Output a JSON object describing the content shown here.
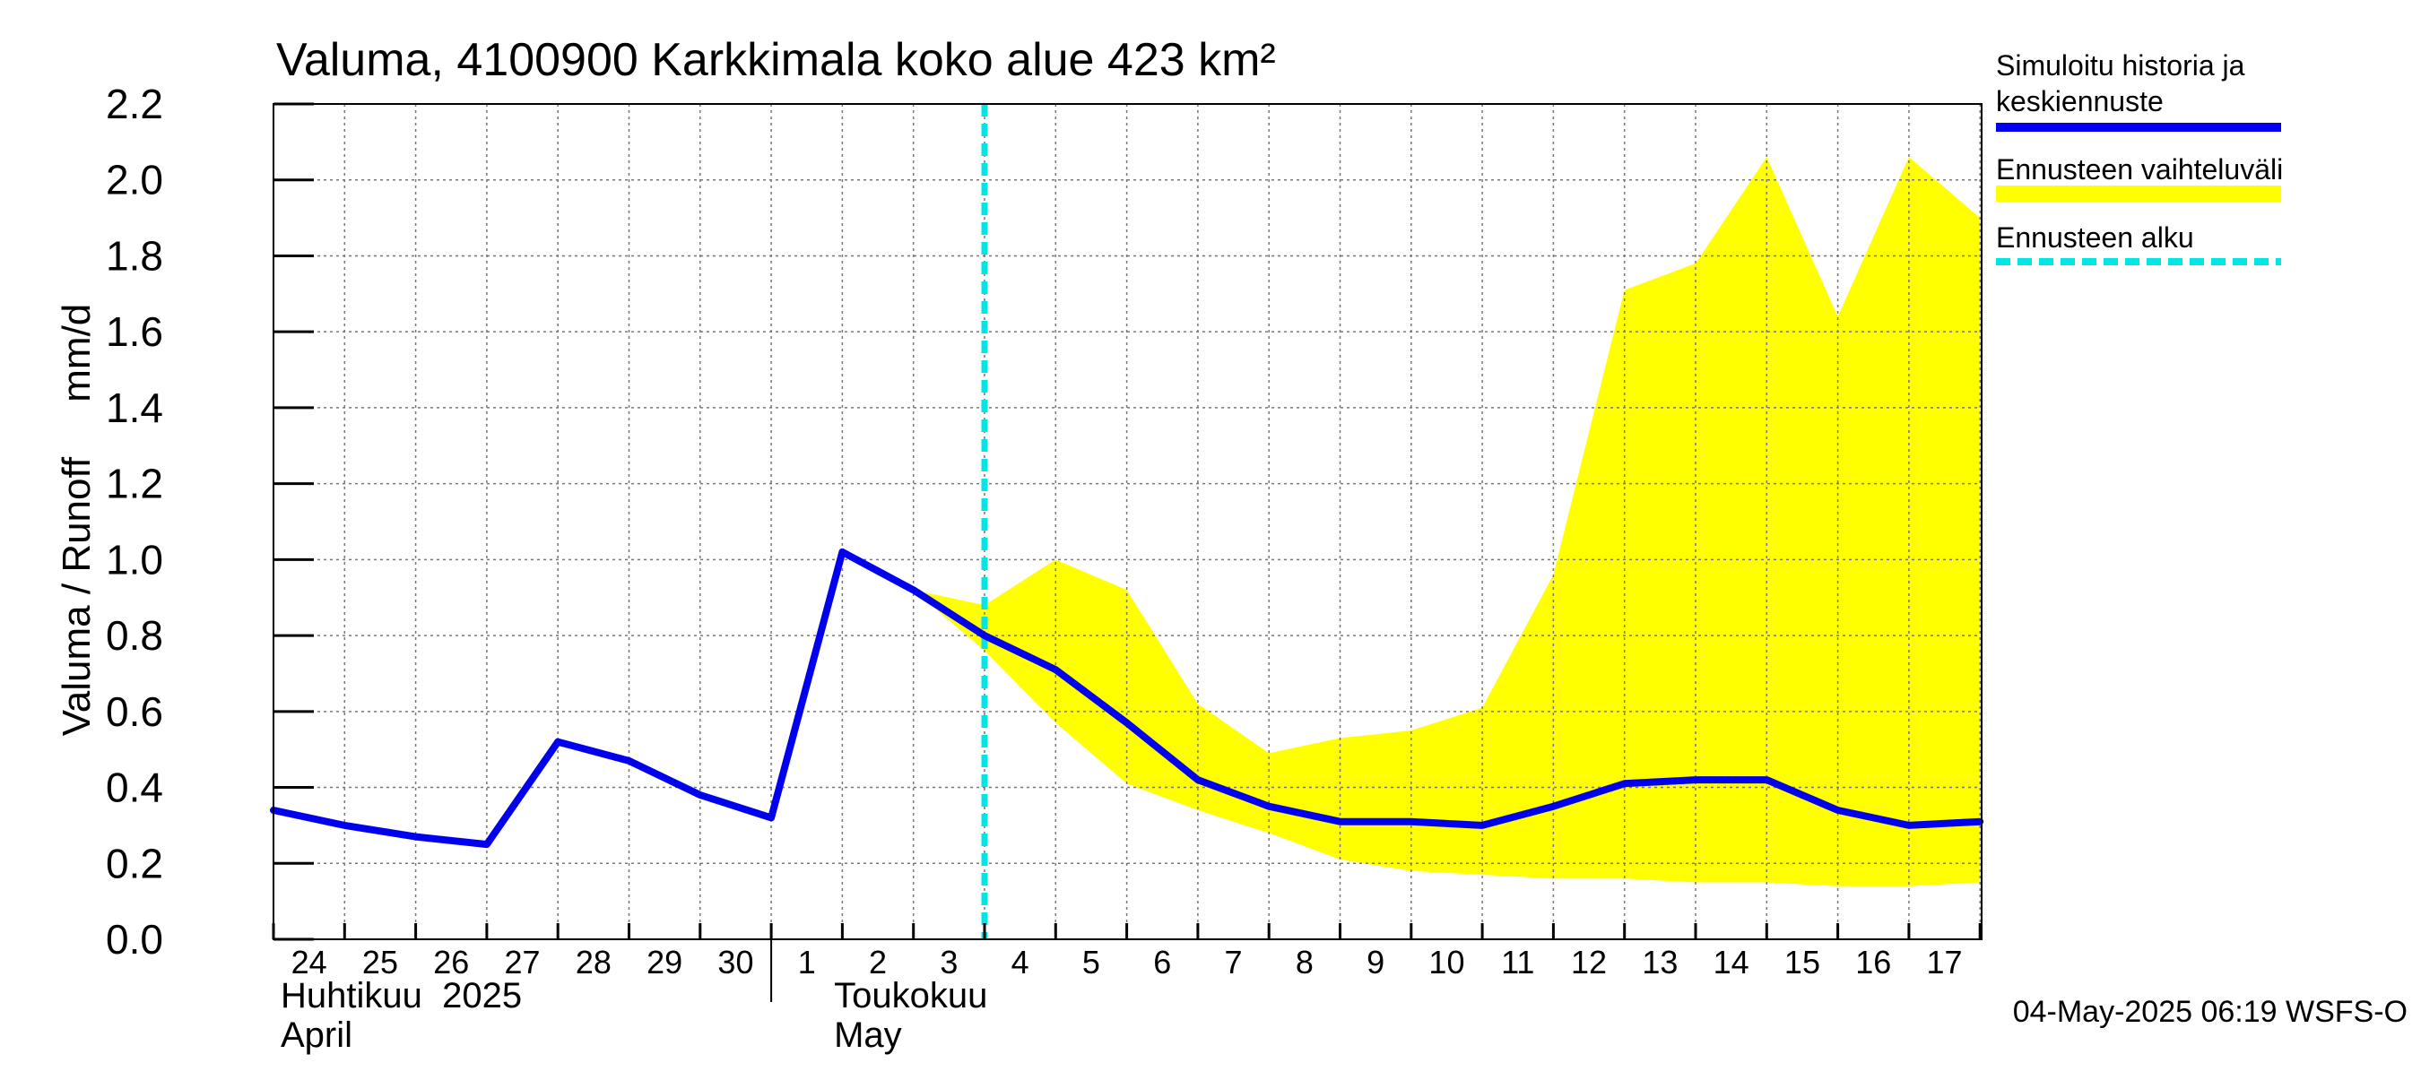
{
  "chart_data": {
    "type": "line",
    "title": "Valuma, 4100900 Karkkimala koko alue 423 km²",
    "ylabel": "Valuma / Runoff     mm/d",
    "ylim": [
      0,
      2.2
    ],
    "yticks": [
      "0.0",
      "0.2",
      "0.4",
      "0.6",
      "0.8",
      "1.0",
      "1.2",
      "1.4",
      "1.6",
      "1.8",
      "2.0",
      "2.2"
    ],
    "x_tick_labels": [
      "24",
      "25",
      "26",
      "27",
      "28",
      "29",
      "30",
      "1",
      "2",
      "3",
      "4",
      "5",
      "6",
      "7",
      "8",
      "9",
      "10",
      "11",
      "12",
      "13",
      "14",
      "15",
      "16",
      "17"
    ],
    "month_labels": [
      {
        "fi": "Huhtikuu  2025",
        "en": "April"
      },
      {
        "fi": "Toukokuu",
        "en": "May"
      }
    ],
    "grid": true,
    "legend_position": "right",
    "series": [
      {
        "name": "Simuloitu historia ja keskiennuste",
        "color": "#0000ee",
        "x": [
          "2025-04-24",
          "2025-04-25",
          "2025-04-26",
          "2025-04-27",
          "2025-04-28",
          "2025-04-29",
          "2025-04-30",
          "2025-05-01",
          "2025-05-02",
          "2025-05-03",
          "2025-05-04",
          "2025-05-05",
          "2025-05-06",
          "2025-05-07",
          "2025-05-08",
          "2025-05-09",
          "2025-05-10",
          "2025-05-11",
          "2025-05-12",
          "2025-05-13",
          "2025-05-14",
          "2025-05-15",
          "2025-05-16",
          "2025-05-17",
          "2025-05-18"
        ],
        "values": [
          0.34,
          0.3,
          0.27,
          0.25,
          0.52,
          0.47,
          0.38,
          0.32,
          1.02,
          0.92,
          0.8,
          0.71,
          0.57,
          0.42,
          0.35,
          0.31,
          0.31,
          0.3,
          0.35,
          0.41,
          0.42,
          0.42,
          0.34,
          0.3,
          0.31
        ]
      },
      {
        "name": "Ennusteen vaihteluväli",
        "color": "#ffff00",
        "x": [
          "2025-05-03",
          "2025-05-04",
          "2025-05-05",
          "2025-05-06",
          "2025-05-07",
          "2025-05-08",
          "2025-05-09",
          "2025-05-10",
          "2025-05-11",
          "2025-05-12",
          "2025-05-13",
          "2025-05-14",
          "2025-05-15",
          "2025-05-16",
          "2025-05-17",
          "2025-05-18"
        ],
        "upper": [
          0.92,
          0.88,
          1.0,
          0.92,
          0.62,
          0.49,
          0.53,
          0.55,
          0.61,
          0.96,
          1.71,
          1.78,
          2.06,
          1.64,
          2.06,
          1.9
        ],
        "lower": [
          0.92,
          0.76,
          0.57,
          0.41,
          0.34,
          0.28,
          0.21,
          0.18,
          0.17,
          0.16,
          0.16,
          0.15,
          0.15,
          0.14,
          0.14,
          0.15
        ]
      },
      {
        "name": "Ennusteen alku",
        "color": "#00e5e5",
        "x": "2025-05-04"
      }
    ],
    "footer": "04-May-2025 06:19 WSFS-O"
  }
}
